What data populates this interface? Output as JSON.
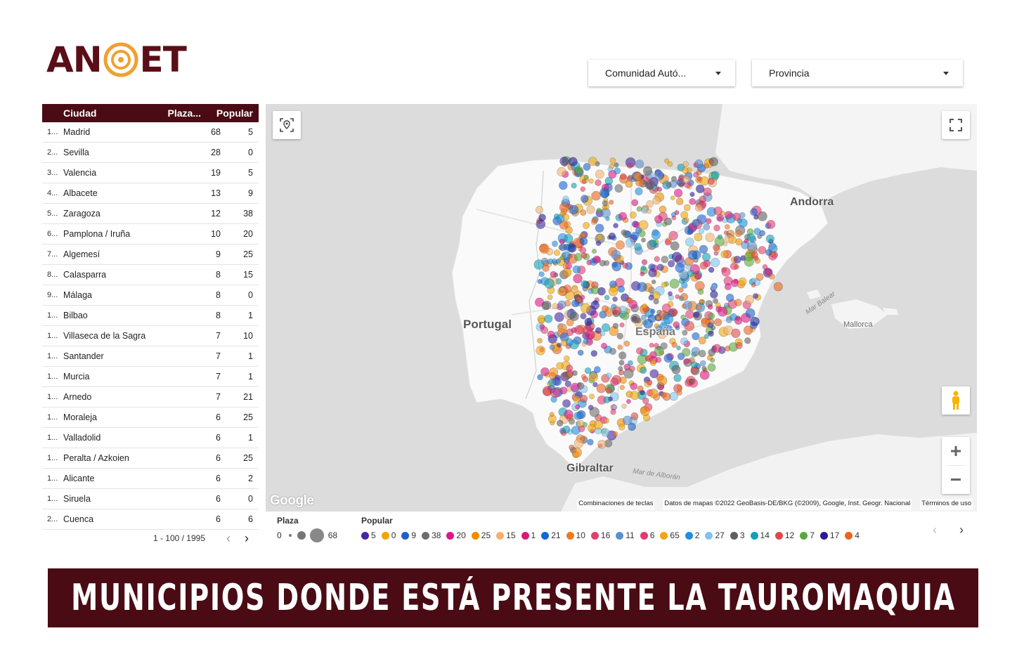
{
  "logo": {
    "text_left": "AN",
    "text_right": "ET",
    "colors": {
      "brand": "#5a0f18",
      "ring": "#f0a030"
    }
  },
  "filters": {
    "comunidad": {
      "label": "Comunidad Autó...",
      "icon": "dropdown-caret-icon"
    },
    "provincia": {
      "label": "Provincia",
      "icon": "dropdown-caret-icon"
    }
  },
  "table": {
    "headers": {
      "ciudad": "Ciudad",
      "plaza": "Plaza...",
      "popular": "Popular"
    },
    "rows": [
      {
        "idx": "1...",
        "ciudad": "Madrid",
        "plaza": "68",
        "popular": "5"
      },
      {
        "idx": "2...",
        "ciudad": "Sevilla",
        "plaza": "28",
        "popular": "0"
      },
      {
        "idx": "3...",
        "ciudad": "Valencia",
        "plaza": "19",
        "popular": "5"
      },
      {
        "idx": "4...",
        "ciudad": "Albacete",
        "plaza": "13",
        "popular": "9"
      },
      {
        "idx": "5...",
        "ciudad": "Zaragoza",
        "plaza": "12",
        "popular": "38"
      },
      {
        "idx": "6...",
        "ciudad": "Pamplona / Iruña",
        "plaza": "10",
        "popular": "20"
      },
      {
        "idx": "7...",
        "ciudad": "Algemesí",
        "plaza": "9",
        "popular": "25"
      },
      {
        "idx": "8...",
        "ciudad": "Calasparra",
        "plaza": "8",
        "popular": "15"
      },
      {
        "idx": "9...",
        "ciudad": "Málaga",
        "plaza": "8",
        "popular": "0"
      },
      {
        "idx": "1...",
        "ciudad": "Bilbao",
        "plaza": "8",
        "popular": "1"
      },
      {
        "idx": "1...",
        "ciudad": "Villaseca de la Sagra",
        "plaza": "7",
        "popular": "10"
      },
      {
        "idx": "1...",
        "ciudad": "Santander",
        "plaza": "7",
        "popular": "1"
      },
      {
        "idx": "1...",
        "ciudad": "Murcia",
        "plaza": "7",
        "popular": "1"
      },
      {
        "idx": "1...",
        "ciudad": "Arnedo",
        "plaza": "7",
        "popular": "21"
      },
      {
        "idx": "1...",
        "ciudad": "Moraleja",
        "plaza": "6",
        "popular": "25"
      },
      {
        "idx": "1...",
        "ciudad": "Valladolid",
        "plaza": "6",
        "popular": "1"
      },
      {
        "idx": "1...",
        "ciudad": "Peralta / Azkoien",
        "plaza": "6",
        "popular": "25"
      },
      {
        "idx": "1...",
        "ciudad": "Alicante",
        "plaza": "6",
        "popular": "2"
      },
      {
        "idx": "1...",
        "ciudad": "Siruela",
        "plaza": "6",
        "popular": "0"
      },
      {
        "idx": "2...",
        "ciudad": "Cuenca",
        "plaza": "6",
        "popular": "6"
      }
    ],
    "pager": {
      "range": "1 - 100 / 1995"
    }
  },
  "map": {
    "labels": {
      "portugal": "Portugal",
      "andorra": "Andorra",
      "espana": "España",
      "gibraltar": "Gibraltar",
      "mallorca": "Mallorca"
    },
    "sea_labels": {
      "balear": "Mar Balear",
      "alboran": "Mar de Alborán"
    },
    "google": "Google",
    "attribution": {
      "shortcuts": "Combinaciones de teclas",
      "data": "Datos de mapas ©2022 GeoBasis-DE/BKG (©2009), Google, Inst. Geogr. Nacional",
      "terms": "Términos de uso"
    },
    "controls": {
      "locate_icon": "locate-pin-icon",
      "fullscreen_icon": "fullscreen-icon",
      "pegman_icon": "pegman-icon",
      "zoom_in": "+",
      "zoom_out": "−"
    }
  },
  "legend": {
    "plaza": {
      "title": "Plaza",
      "min": "0",
      "max": "68"
    },
    "popular": {
      "title": "Popular",
      "items": [
        {
          "label": "5",
          "color": "#4527a0"
        },
        {
          "label": "0",
          "color": "#f0a500"
        },
        {
          "label": "9",
          "color": "#1e5fc8"
        },
        {
          "label": "38",
          "color": "#6d6d6d"
        },
        {
          "label": "20",
          "color": "#e0148c"
        },
        {
          "label": "25",
          "color": "#f08c00"
        },
        {
          "label": "15",
          "color": "#f4b06a"
        },
        {
          "label": "1",
          "color": "#d81b78"
        },
        {
          "label": "21",
          "color": "#1565d8"
        },
        {
          "label": "10",
          "color": "#f07820"
        },
        {
          "label": "16",
          "color": "#e04070"
        },
        {
          "label": "11",
          "color": "#5b8fd0"
        },
        {
          "label": "6",
          "color": "#e53970"
        },
        {
          "label": "65",
          "color": "#f2a60c"
        },
        {
          "label": "2",
          "color": "#1e8fe0"
        },
        {
          "label": "27",
          "color": "#7ec4f0"
        },
        {
          "label": "3",
          "color": "#5f5f5f"
        },
        {
          "label": "14",
          "color": "#10a0b8"
        },
        {
          "label": "12",
          "color": "#e04848"
        },
        {
          "label": "7",
          "color": "#5aa83c"
        },
        {
          "label": "17",
          "color": "#2a1a9a"
        },
        {
          "label": "4",
          "color": "#e8641e"
        }
      ]
    }
  },
  "banner": {
    "text": "MUNICIPIOS DONDE ESTÁ PRESENTE LA TAUROMAQUIA"
  }
}
